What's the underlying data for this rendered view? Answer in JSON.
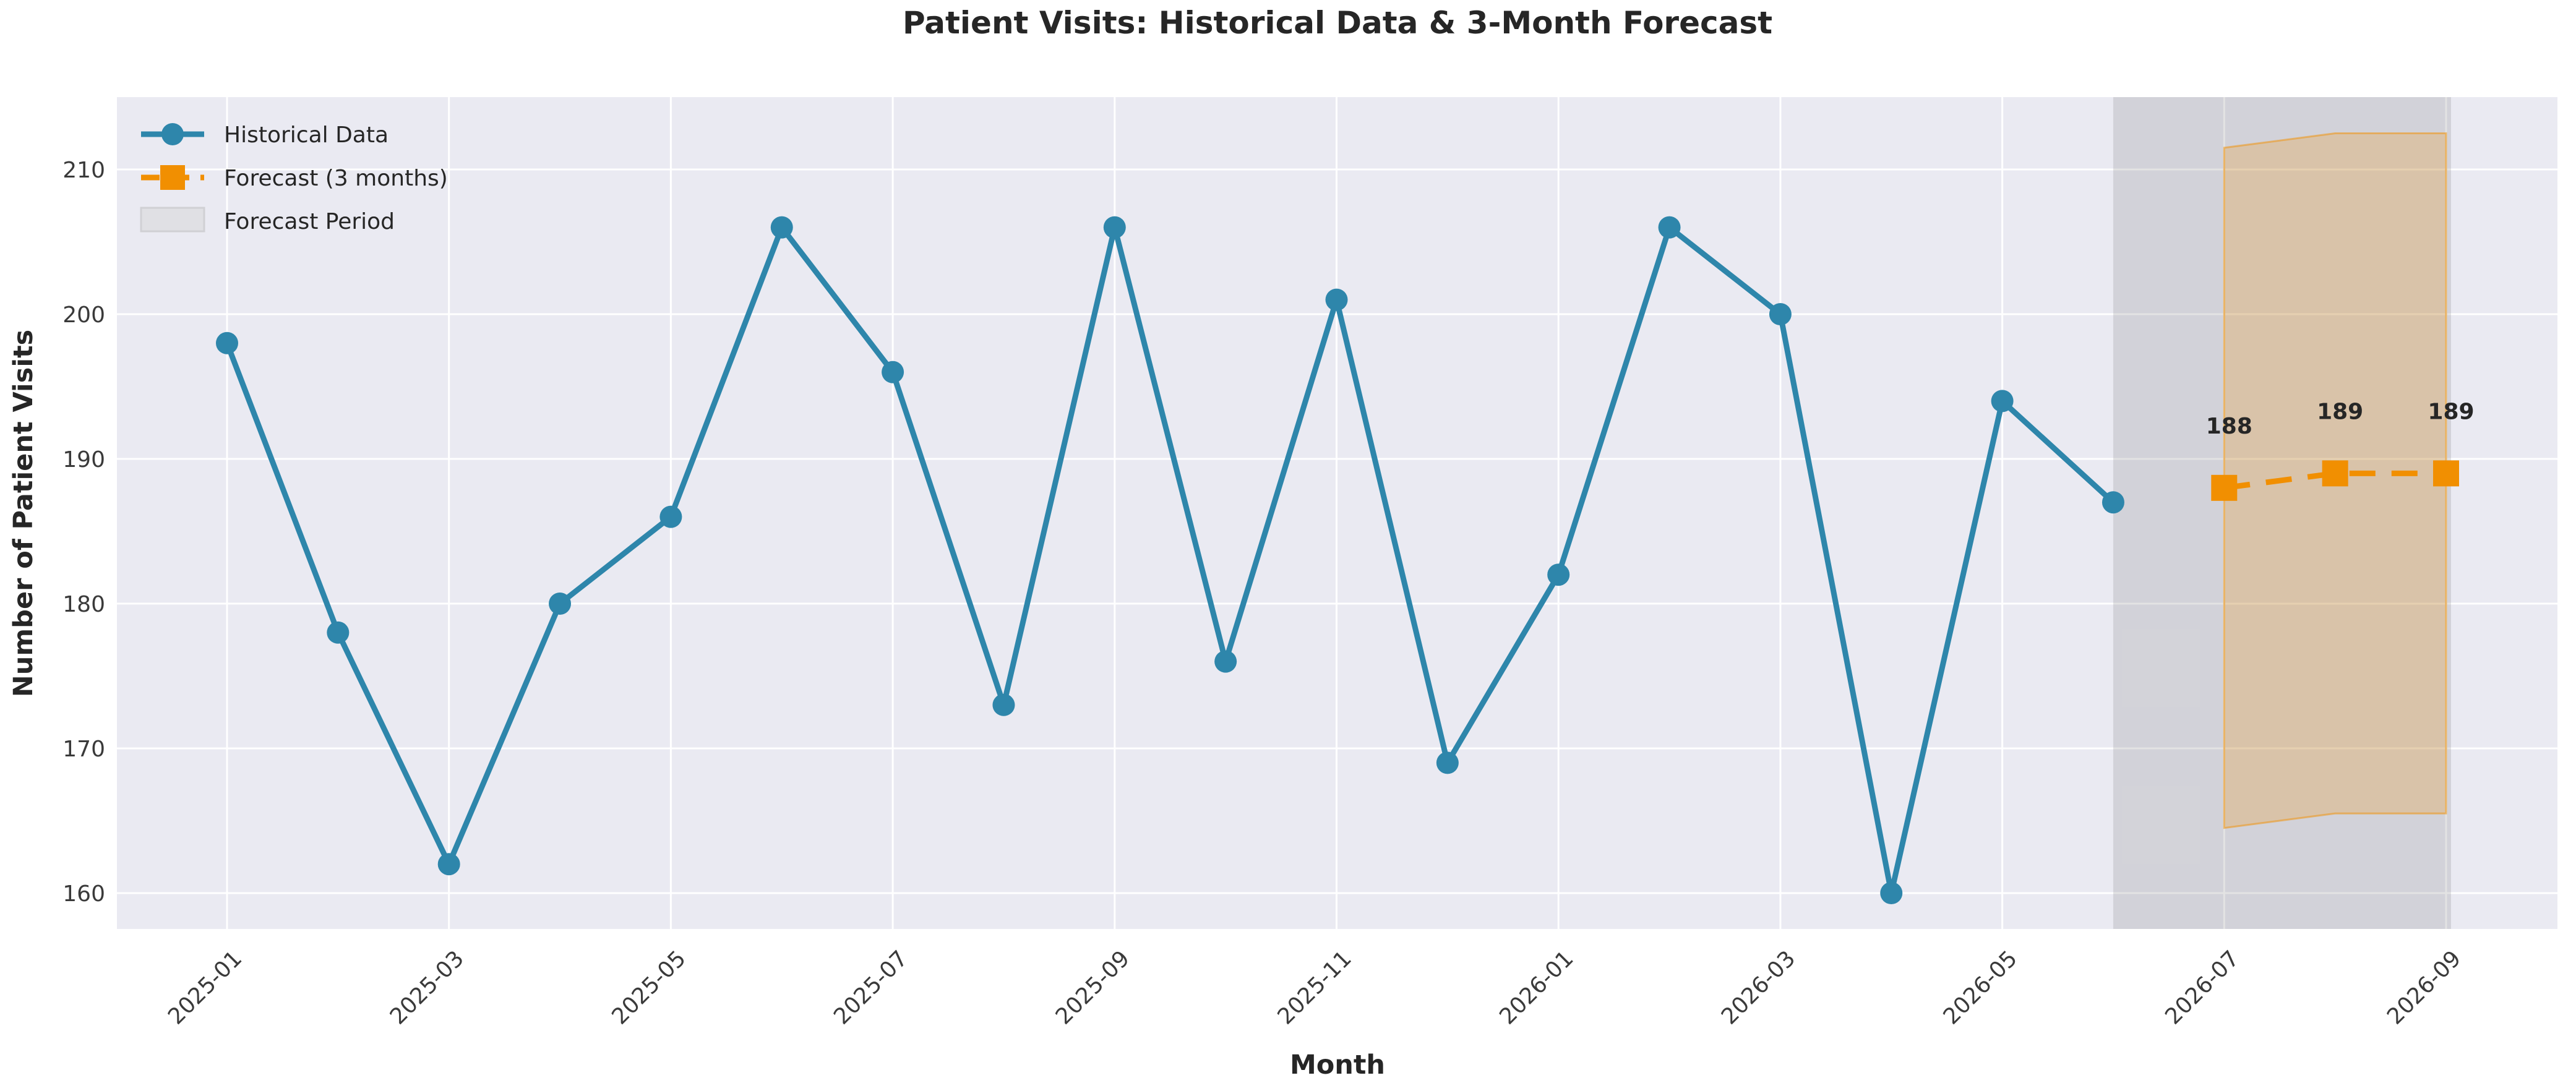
{
  "chart_data": {
    "type": "line",
    "title": "Patient Visits: Historical Data & 3-Month Forecast",
    "xlabel": "Month",
    "ylabel": "Number of Patient Visits",
    "grid": true,
    "legend_position": "upper left",
    "ylim": [
      157.5,
      215
    ],
    "yticks": [
      160,
      170,
      180,
      190,
      200,
      210
    ],
    "x_tick_labels": [
      "2025-01",
      "2025-03",
      "2025-05",
      "2025-07",
      "2025-09",
      "2025-11",
      "2026-01",
      "2026-03",
      "2026-05",
      "2026-07",
      "2026-09"
    ],
    "colors": {
      "historical": "#2E86AB",
      "forecast": "#F18F01",
      "axes_background": "#EAEAF2",
      "gridline": "#FFFFFF",
      "forecast_period_fill": "rgba(127,127,127,0.22)",
      "ci_fill": "rgba(241,143,1,0.22)",
      "ci_edge": "rgba(241,143,1,0.5)",
      "legend_patch_fill": "#e0e0e4",
      "legend_patch_edge": "#d0d0d4"
    },
    "series": [
      {
        "name": "Historical Data",
        "style": "solid",
        "marker": "circle",
        "color": "#2E86AB",
        "x": [
          "2025-01",
          "2025-02",
          "2025-03",
          "2025-04",
          "2025-05",
          "2025-06",
          "2025-07",
          "2025-08",
          "2025-09",
          "2025-10",
          "2025-11",
          "2025-12",
          "2026-01",
          "2026-02",
          "2026-03",
          "2026-04",
          "2026-05",
          "2026-06"
        ],
        "values": [
          198,
          178,
          162,
          180,
          186,
          206,
          196,
          173,
          206,
          176,
          201,
          169,
          182,
          206,
          200,
          160,
          194,
          187
        ]
      },
      {
        "name": "Forecast (3 months)",
        "style": "dashed",
        "marker": "square",
        "color": "#F18F01",
        "x": [
          "2026-07",
          "2026-08",
          "2026-09"
        ],
        "values": [
          188,
          189,
          189
        ],
        "data_labels": [
          "188",
          "189",
          "189"
        ],
        "ci_lower": [
          164.5,
          165.5,
          165.5
        ],
        "ci_upper": [
          211.5,
          212.5,
          212.5
        ]
      }
    ],
    "forecast_period_band": {
      "label": "Forecast Period",
      "from": "2026-06",
      "to": "2026-09"
    },
    "legend": [
      "Historical Data",
      "Forecast (3 months)",
      "Forecast Period"
    ]
  }
}
